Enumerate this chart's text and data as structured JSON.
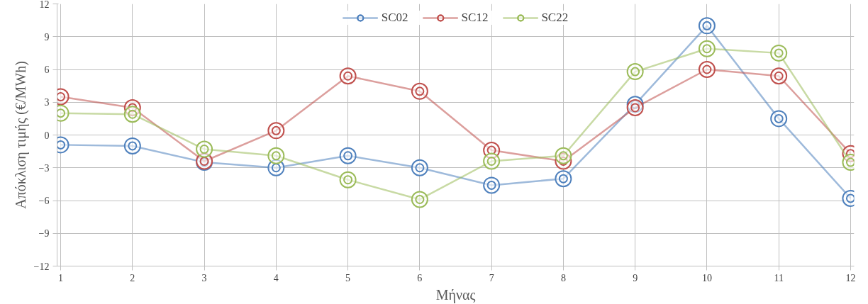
{
  "chart_data": {
    "type": "line",
    "xlabel": "Μήνας",
    "ylabel": "Απόκλιση τιμής (€/MWh)",
    "categories": [
      "1",
      "2",
      "3",
      "4",
      "5",
      "6",
      "7",
      "8",
      "9",
      "10",
      "11",
      "12"
    ],
    "series": [
      {
        "name": "SC02",
        "color": "#4f81bd",
        "values": [
          -0.9,
          -1.0,
          -2.5,
          -3.0,
          -1.9,
          -3.0,
          -4.6,
          -4.0,
          2.8,
          10.0,
          1.5,
          -5.8
        ]
      },
      {
        "name": "SC12",
        "color": "#c0504d",
        "values": [
          3.5,
          2.5,
          -2.4,
          0.4,
          5.4,
          4.0,
          -1.4,
          -2.4,
          2.5,
          6.0,
          5.4,
          -1.7
        ]
      },
      {
        "name": "SC22",
        "color": "#9bbb59",
        "values": [
          2.0,
          1.9,
          -1.3,
          -1.9,
          -4.1,
          -5.9,
          -2.4,
          -1.9,
          5.8,
          7.9,
          7.5,
          -2.5
        ]
      }
    ],
    "ylim": [
      -12,
      12
    ],
    "yticks": [
      -12,
      -9,
      -6,
      -3,
      0,
      3,
      6,
      9,
      12
    ],
    "grid": true,
    "legend": "top",
    "marker": "circle",
    "line_style": "solid"
  }
}
